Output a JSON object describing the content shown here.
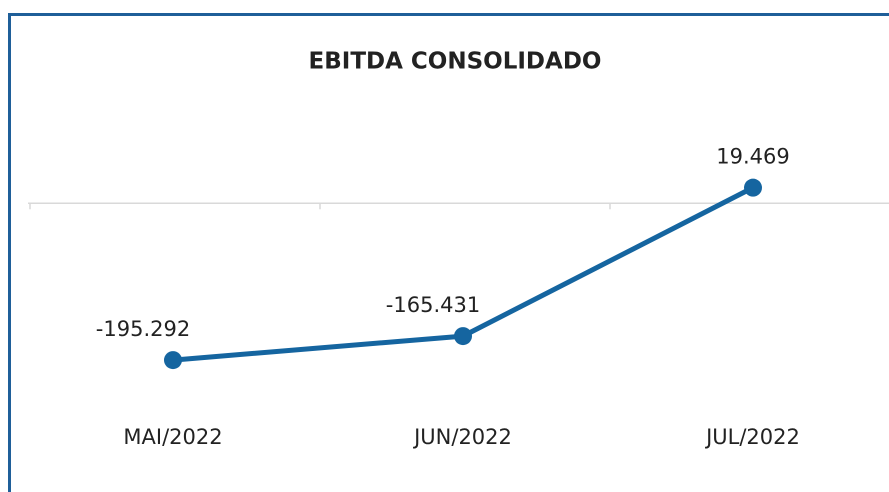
{
  "chart_data": {
    "type": "line",
    "title": "EBITDA CONSOLIDADO",
    "categories": [
      "MAI/2022",
      "JUN/2022",
      "JUL/2022"
    ],
    "values": [
      -195292,
      -165431,
      19469
    ],
    "value_labels": [
      "-195.292",
      "-165.431",
      "19.469"
    ],
    "color": "#1565a0",
    "ylim": [
      -250000,
      100000
    ]
  }
}
